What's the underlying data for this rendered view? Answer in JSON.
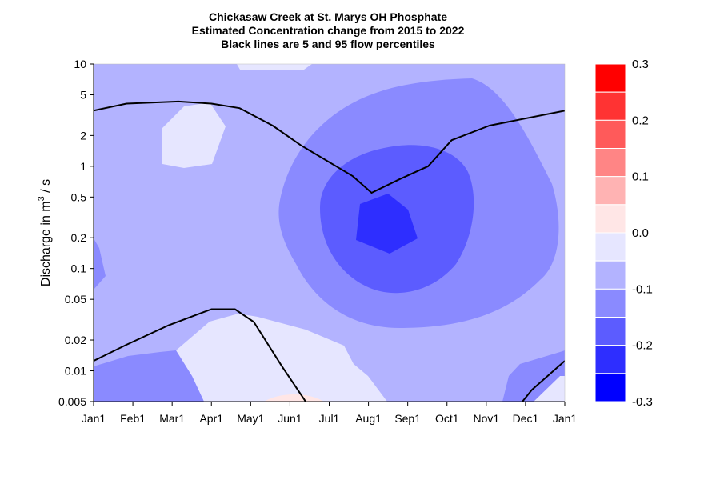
{
  "chart_data": {
    "type": "contour",
    "title_lines": [
      "Chickasaw Creek at St. Marys OH  Phosphate",
      "Estimated Concentration change from 2015 to 2022",
      "Black lines are 5 and 95 flow percentiles"
    ],
    "ylabel_prefix": "Discharge in m",
    "ylabel_sup": "3",
    "ylabel_suffix": " / s",
    "x_ticks": [
      "Jan1",
      "Feb1",
      "Mar1",
      "Apr1",
      "May1",
      "Jun1",
      "Jul1",
      "Aug1",
      "Sep1",
      "Oct1",
      "Nov1",
      "Dec1",
      "Jan1"
    ],
    "y_scale": "log",
    "y_ticks": [
      {
        "value": 10,
        "label": "10"
      },
      {
        "value": 5,
        "label": "5"
      },
      {
        "value": 2,
        "label": "2"
      },
      {
        "value": 1,
        "label": "1"
      },
      {
        "value": 0.5,
        "label": "0.5"
      },
      {
        "value": 0.2,
        "label": "0.2"
      },
      {
        "value": 0.1,
        "label": "0.1"
      },
      {
        "value": 0.05,
        "label": "0.05"
      },
      {
        "value": 0.02,
        "label": "0.02"
      },
      {
        "value": 0.01,
        "label": "0.01"
      },
      {
        "value": 0.005,
        "label": "0.005"
      }
    ],
    "ylim": [
      0.005,
      10
    ],
    "colorbar": {
      "levels": [
        0.3,
        0.25,
        0.2,
        0.15,
        0.1,
        0.05,
        0.0,
        -0.05,
        -0.1,
        -0.15,
        -0.2,
        -0.25,
        -0.3
      ],
      "colors": [
        "#ff0000",
        "#ff3333",
        "#ff5a5a",
        "#ff8585",
        "#ffb3b3",
        "#ffe6e6",
        "#e6e6ff",
        "#b3b3ff",
        "#8a8aff",
        "#5c5cff",
        "#2e2eff",
        "#0000ff"
      ],
      "labels": [
        "0.3",
        "0.2",
        "0.1",
        "0.0",
        "-0.1",
        "-0.2",
        "-0.3"
      ]
    },
    "flow_percentile_lines": {
      "p95": [
        {
          "t": 0.0,
          "q": 3.5
        },
        {
          "t": 0.07,
          "q": 4.1
        },
        {
          "t": 0.18,
          "q": 4.3
        },
        {
          "t": 0.25,
          "q": 4.1
        },
        {
          "t": 0.31,
          "q": 3.7
        },
        {
          "t": 0.38,
          "q": 2.5
        },
        {
          "t": 0.44,
          "q": 1.6
        },
        {
          "t": 0.55,
          "q": 0.8
        },
        {
          "t": 0.59,
          "q": 0.55
        },
        {
          "t": 0.65,
          "q": 0.75
        },
        {
          "t": 0.71,
          "q": 1.0
        },
        {
          "t": 0.76,
          "q": 1.8
        },
        {
          "t": 0.84,
          "q": 2.5
        },
        {
          "t": 1.0,
          "q": 3.5
        }
      ],
      "p5": [
        {
          "t": 0.0,
          "q": 0.0125
        },
        {
          "t": 0.07,
          "q": 0.018
        },
        {
          "t": 0.16,
          "q": 0.028
        },
        {
          "t": 0.25,
          "q": 0.04
        },
        {
          "t": 0.3,
          "q": 0.04
        },
        {
          "t": 0.34,
          "q": 0.03
        },
        {
          "t": 0.4,
          "q": 0.011
        },
        {
          "t": 0.45,
          "q": 0.005
        }
      ],
      "p5_tail": [
        {
          "t": 0.91,
          "q": 0.005
        },
        {
          "t": 0.93,
          "q": 0.0065
        },
        {
          "t": 1.0,
          "q": 0.0125
        }
      ]
    }
  }
}
